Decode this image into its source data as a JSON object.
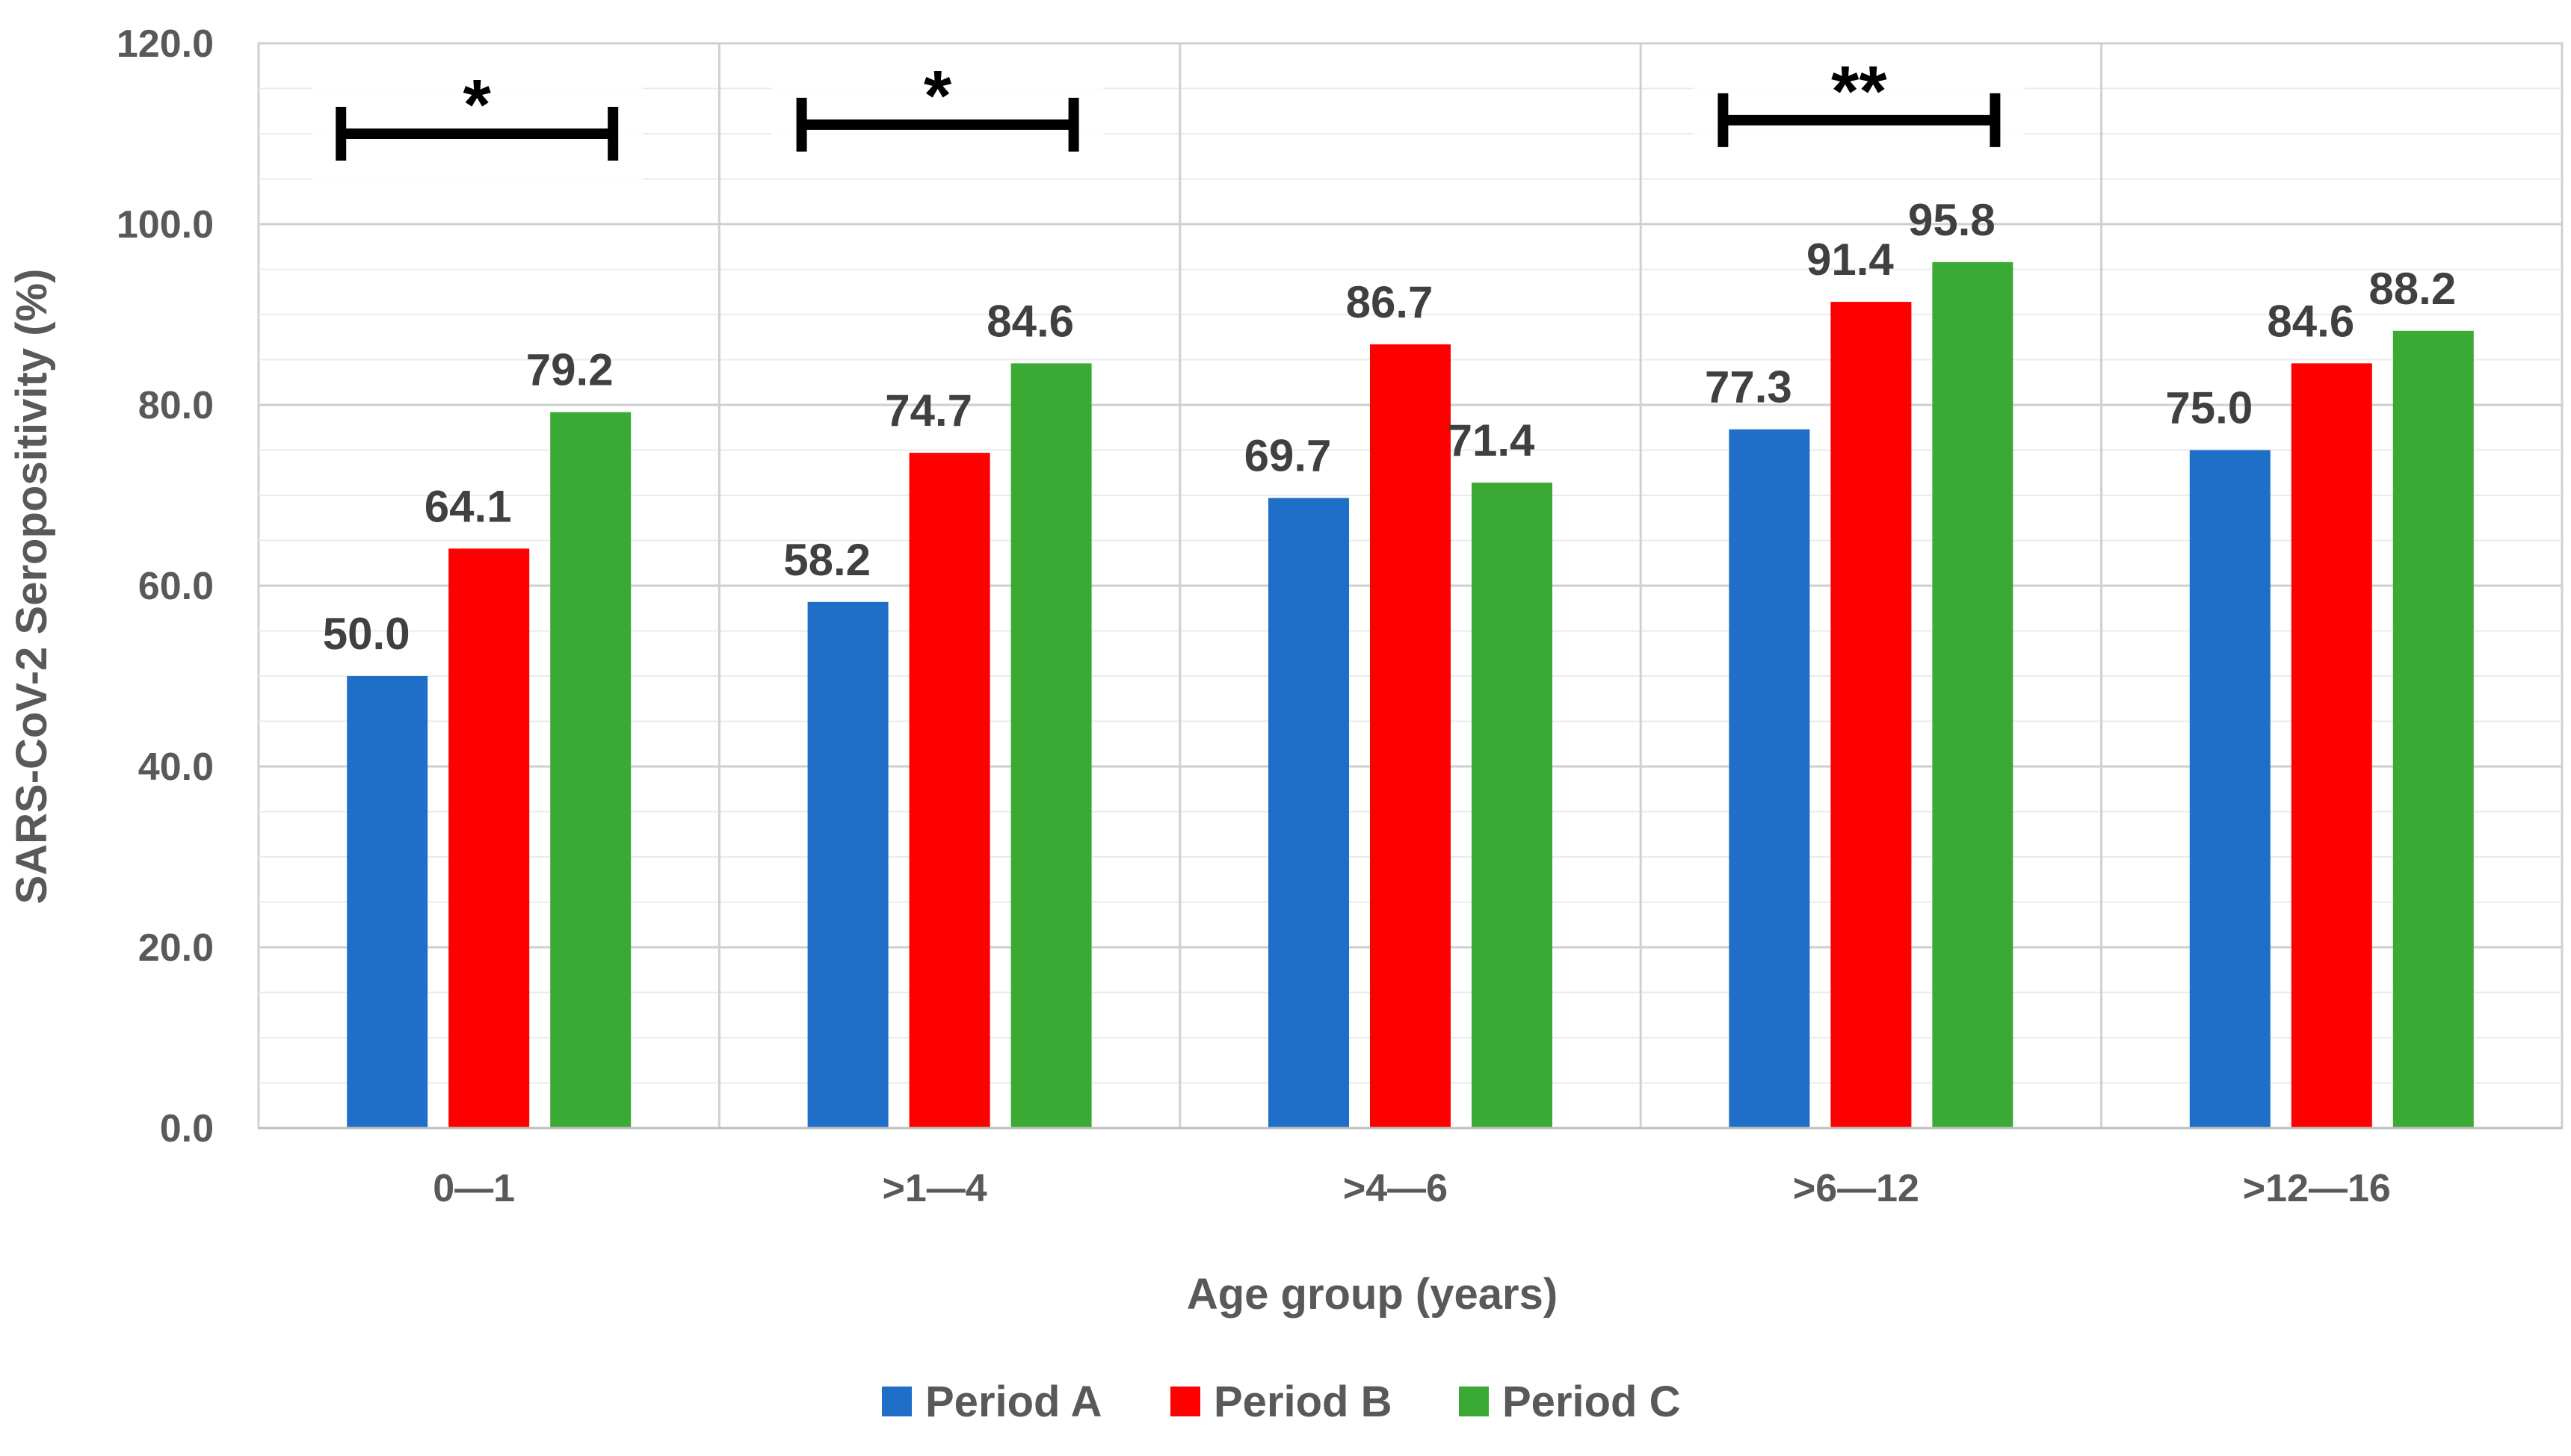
{
  "chart_data": {
    "type": "bar",
    "title": "",
    "xlabel": "Age group (years)",
    "ylabel": "SARS-CoV-2 Seropositivity (%)",
    "ylim": [
      0,
      120
    ],
    "yticks": [
      "0.0",
      "20.0",
      "40.0",
      "60.0",
      "80.0",
      "100.0",
      "120.0"
    ],
    "categories": [
      "0—1",
      ">1—4",
      ">4—6",
      ">6—12",
      ">12—16"
    ],
    "series": [
      {
        "name": "Period A",
        "color": "#1F6FC8",
        "values": [
          50.0,
          58.2,
          69.7,
          77.3,
          75.0
        ],
        "labels": [
          "50.0",
          "58.2",
          "69.7",
          "77.3",
          "75.0"
        ]
      },
      {
        "name": "Period B",
        "color": "#FF0000",
        "values": [
          64.1,
          74.7,
          86.7,
          91.4,
          84.6
        ],
        "labels": [
          "64.1",
          "74.7",
          "86.7",
          "91.4",
          "84.6"
        ]
      },
      {
        "name": "Period C",
        "color": "#3BAA35",
        "values": [
          79.2,
          84.6,
          71.4,
          95.8,
          88.2
        ],
        "labels": [
          "79.2",
          "84.6",
          "71.4",
          "95.8",
          "88.2"
        ]
      }
    ],
    "significance": [
      {
        "category_index": 0,
        "from_series": 0,
        "to_series": 2,
        "label": "*",
        "y_value": 110
      },
      {
        "category_index": 1,
        "from_series": 0,
        "to_series": 2,
        "label": "*",
        "y_value": 111
      },
      {
        "category_index": 3,
        "from_series": 0,
        "to_series": 2,
        "label": "**",
        "y_value": 111.5
      }
    ],
    "legend_position": "bottom",
    "grid": true
  }
}
